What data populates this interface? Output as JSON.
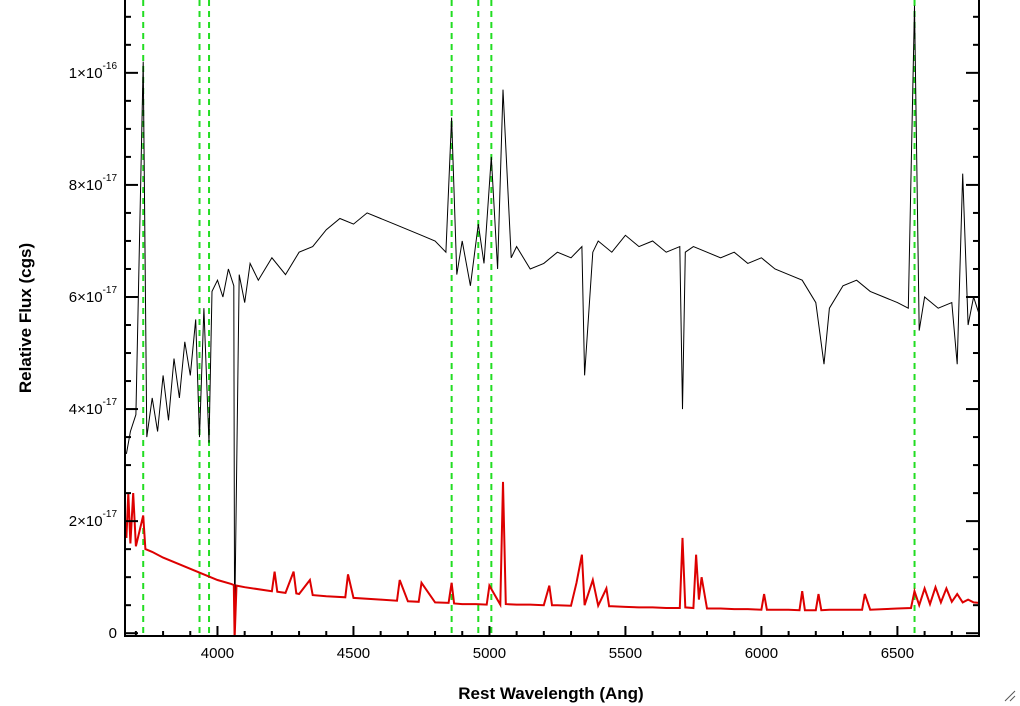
{
  "chart_data": {
    "type": "line",
    "title": "",
    "xlabel": "Rest Wavelength (Ang)",
    "ylabel": "Relative Flux (cgs)",
    "xlim": [
      3660,
      6800
    ],
    "ylim": [
      -5e-19,
      1.13e-16
    ],
    "x_ticks": [
      {
        "value": 4000,
        "label": "4000"
      },
      {
        "value": 4500,
        "label": "4500"
      },
      {
        "value": 5000,
        "label": "5000"
      },
      {
        "value": 5500,
        "label": "5500"
      },
      {
        "value": 6000,
        "label": "6000"
      },
      {
        "value": 6500,
        "label": "6500"
      }
    ],
    "y_ticks": [
      {
        "value": 0,
        "mantissa": "0",
        "exponent": ""
      },
      {
        "value": 2e-17,
        "mantissa": "2×10",
        "exponent": "-17"
      },
      {
        "value": 4e-17,
        "mantissa": "4×10",
        "exponent": "-17"
      },
      {
        "value": 6e-17,
        "mantissa": "6×10",
        "exponent": "-17"
      },
      {
        "value": 8e-17,
        "mantissa": "8×10",
        "exponent": "-17"
      },
      {
        "value": 1e-16,
        "mantissa": "1×10",
        "exponent": "-16"
      }
    ],
    "x_minor_step": 100,
    "y_minor_step": 5e-18,
    "grid": false,
    "legend": "none",
    "vertical_lines": {
      "style": "dashed",
      "color": "#22dd22",
      "x": [
        3727,
        3934,
        3969,
        4861,
        4959,
        5007,
        6563
      ]
    },
    "series": [
      {
        "color": "#000000",
        "x": [
          3665,
          3680,
          3700,
          3727,
          3740,
          3760,
          3780,
          3800,
          3820,
          3840,
          3860,
          3880,
          3900,
          3920,
          3934,
          3950,
          3969,
          3980,
          4000,
          4020,
          4040,
          4060,
          4063,
          4080,
          4100,
          4120,
          4150,
          4200,
          4250,
          4300,
          4350,
          4400,
          4450,
          4500,
          4550,
          4600,
          4650,
          4700,
          4750,
          4800,
          4840,
          4861,
          4880,
          4900,
          4930,
          4959,
          4980,
          5007,
          5030,
          5050,
          5080,
          5100,
          5150,
          5200,
          5250,
          5300,
          5340,
          5350,
          5380,
          5400,
          5450,
          5500,
          5550,
          5600,
          5650,
          5700,
          5710,
          5720,
          5750,
          5800,
          5850,
          5900,
          5950,
          6000,
          6050,
          6100,
          6150,
          6200,
          6230,
          6250,
          6300,
          6350,
          6400,
          6450,
          6500,
          6540,
          6563,
          6580,
          6600,
          6650,
          6700,
          6720,
          6740,
          6760,
          6780,
          6800
        ],
        "values": [
          3.2e-17,
          3.6e-17,
          3.9e-17,
          1.02e-16,
          3.5e-17,
          4.2e-17,
          3.6e-17,
          4.6e-17,
          3.8e-17,
          4.9e-17,
          4.2e-17,
          5.2e-17,
          4.6e-17,
          5.6e-17,
          3.5e-17,
          5.8e-17,
          3.4e-17,
          6.1e-17,
          6.3e-17,
          6e-17,
          6.5e-17,
          6.2e-17,
          1e-18,
          6.4e-17,
          5.9e-17,
          6.6e-17,
          6.3e-17,
          6.7e-17,
          6.4e-17,
          6.8e-17,
          6.9e-17,
          7.2e-17,
          7.4e-17,
          7.3e-17,
          7.5e-17,
          7.4e-17,
          7.3e-17,
          7.2e-17,
          7.1e-17,
          7e-17,
          6.8e-17,
          9.2e-17,
          6.4e-17,
          7e-17,
          6.2e-17,
          7.3e-17,
          6.6e-17,
          8.5e-17,
          6.5e-17,
          9.7e-17,
          6.7e-17,
          6.9e-17,
          6.5e-17,
          6.6e-17,
          6.8e-17,
          6.7e-17,
          6.9e-17,
          4.6e-17,
          6.8e-17,
          7e-17,
          6.8e-17,
          7.1e-17,
          6.9e-17,
          7e-17,
          6.8e-17,
          6.9e-17,
          4e-17,
          6.8e-17,
          6.9e-17,
          6.8e-17,
          6.7e-17,
          6.8e-17,
          6.6e-17,
          6.7e-17,
          6.5e-17,
          6.4e-17,
          6.3e-17,
          5.9e-17,
          4.8e-17,
          5.8e-17,
          6.2e-17,
          6.3e-17,
          6.1e-17,
          6e-17,
          5.9e-17,
          5.8e-17,
          1.12e-16,
          5.4e-17,
          6e-17,
          5.8e-17,
          5.9e-17,
          4.8e-17,
          8.2e-17,
          5.5e-17,
          6e-17,
          5.7e-17
        ]
      },
      {
        "color": "#dd0000",
        "x": [
          3665,
          3672,
          3680,
          3690,
          3700,
          3727,
          3735,
          3760,
          3800,
          3850,
          3900,
          3950,
          4000,
          4050,
          4060,
          4063,
          4070,
          4100,
          4200,
          4210,
          4220,
          4250,
          4280,
          4290,
          4300,
          4340,
          4350,
          4400,
          4470,
          4480,
          4500,
          4600,
          4660,
          4670,
          4700,
          4740,
          4750,
          4800,
          4850,
          4861,
          4870,
          4900,
          4950,
          4990,
          5000,
          5040,
          5050,
          5060,
          5100,
          5150,
          5200,
          5220,
          5230,
          5250,
          5300,
          5320,
          5340,
          5350,
          5380,
          5400,
          5430,
          5440,
          5450,
          5500,
          5550,
          5600,
          5650,
          5700,
          5710,
          5720,
          5750,
          5760,
          5770,
          5780,
          5800,
          5850,
          5900,
          5950,
          6000,
          6010,
          6020,
          6050,
          6100,
          6140,
          6150,
          6160,
          6200,
          6210,
          6220,
          6250,
          6300,
          6370,
          6380,
          6400,
          6450,
          6500,
          6550,
          6563,
          6580,
          6600,
          6620,
          6640,
          6660,
          6680,
          6700,
          6720,
          6740,
          6760,
          6780,
          6800
        ],
        "values": [
          1.7e-17,
          2.5e-17,
          1.6e-17,
          2.5e-17,
          1.55e-17,
          2.1e-17,
          1.5e-17,
          1.45e-17,
          1.35e-17,
          1.25e-17,
          1.15e-17,
          1.05e-17,
          9.5e-18,
          8.8e-18,
          8.6e-18,
          -1e-18,
          8.5e-18,
          8.2e-18,
          7.5e-18,
          1.1e-17,
          7.4e-18,
          7.2e-18,
          1.1e-17,
          7.1e-18,
          7e-18,
          9.5e-18,
          6.8e-18,
          6.6e-18,
          6.4e-18,
          1.05e-17,
          6.3e-18,
          6e-18,
          5.8e-18,
          9.5e-18,
          5.7e-18,
          5.6e-18,
          9e-18,
          5.5e-18,
          5.4e-18,
          9e-18,
          5.3e-18,
          5.2e-18,
          5.2e-18,
          5.1e-18,
          8.5e-18,
          5.1e-18,
          2.7e-17,
          5.2e-18,
          5.1e-18,
          5.1e-18,
          5e-18,
          8.5e-18,
          5e-18,
          5e-18,
          4.9e-18,
          9e-18,
          1.4e-17,
          5e-18,
          9.5e-18,
          4.9e-18,
          8e-18,
          4.8e-18,
          4.8e-18,
          4.7e-18,
          4.6e-18,
          4.6e-18,
          4.5e-18,
          4.5e-18,
          1.7e-17,
          4.6e-18,
          4.5e-18,
          1.4e-17,
          6e-18,
          1e-17,
          4.4e-18,
          4.4e-18,
          4.3e-18,
          4.3e-18,
          4.2e-18,
          7e-18,
          4.2e-18,
          4.2e-18,
          4.2e-18,
          4.1e-18,
          7.5e-18,
          4.1e-18,
          4.1e-18,
          7e-18,
          4.1e-18,
          4.2e-18,
          4.2e-18,
          4.2e-18,
          7e-18,
          4.2e-18,
          4.3e-18,
          4.4e-18,
          4.5e-18,
          7.5e-18,
          5e-18,
          8e-18,
          5.2e-18,
          8.2e-18,
          5.5e-18,
          8e-18,
          5.6e-18,
          7e-18,
          5.5e-18,
          6e-18,
          5.5e-18,
          5.4e-18
        ]
      }
    ]
  }
}
